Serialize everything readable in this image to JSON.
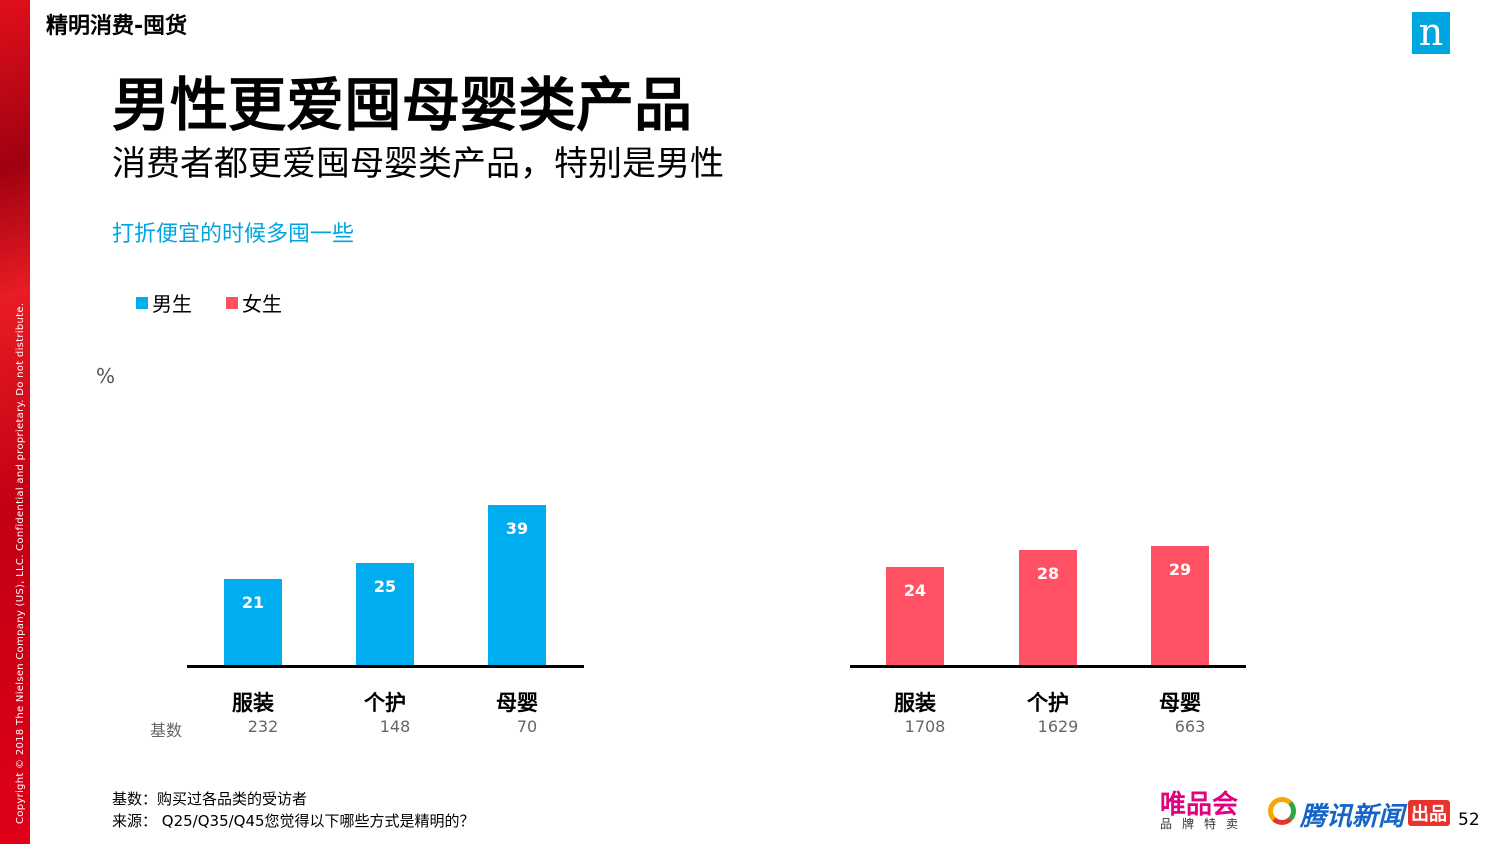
{
  "section": "精明消费-囤货",
  "copyright": "Copyright © 2018 The Nielsen Company (US), LLC. Confidential and proprietary. Do not distribute.",
  "logo": "n",
  "title": "男性更爱囤母婴类产品",
  "subtitle": "消费者都更爱囤母婴类产品，特别是男性",
  "question": "打折便宜的时候多囤一些",
  "base_label": "基数",
  "footnote_base": "基数：购买过各品类的受访者",
  "footnote_source": "来源：   Q25/Q35/Q45您觉得以下哪些方式是精明的？",
  "page_number": "52",
  "brand_logos": [
    "唯品会 品牌特卖",
    "腾讯新闻 出品"
  ],
  "chart_data": [
    {
      "type": "bar",
      "series": [
        {
          "name": "男生",
          "values": [
            21,
            25,
            39
          ],
          "color": "#00aeef"
        }
      ],
      "categories": [
        "服装",
        "个护",
        "母婴"
      ],
      "bases": [
        "232",
        "148",
        "70"
      ],
      "ylabel": "%",
      "ylim": [
        0,
        40
      ],
      "grid": false,
      "legend": "top-left"
    },
    {
      "type": "bar",
      "series": [
        {
          "name": "女生",
          "values": [
            24,
            28,
            29
          ],
          "color": "#ff5064"
        }
      ],
      "categories": [
        "服装",
        "个护",
        "母婴"
      ],
      "bases": [
        "1708",
        "1629",
        "663"
      ],
      "ylim": [
        0,
        40
      ],
      "grid": false
    }
  ]
}
